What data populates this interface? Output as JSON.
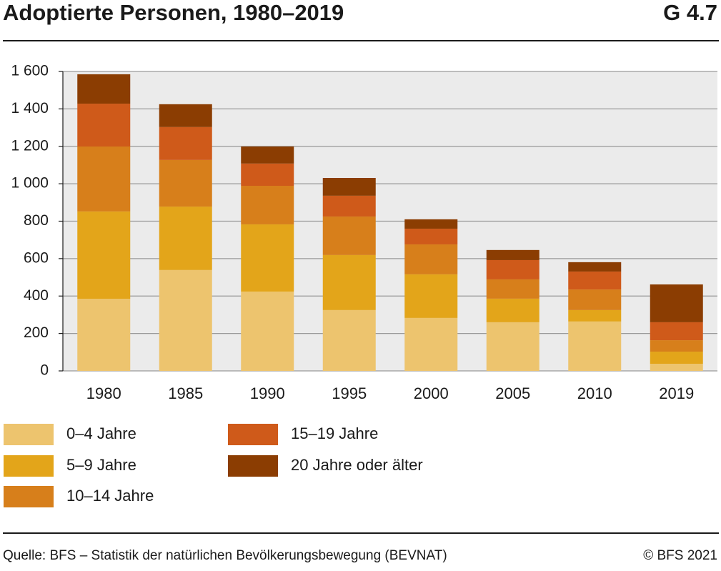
{
  "chart_data": {
    "type": "stacked_bar",
    "title": "Adoptierte Personen, 1980–2019",
    "figure_number": "G 4.7",
    "source": "Quelle: BFS – Statistik der natürlichen Bevölkerungsbewegung (BEVNAT)",
    "copyright": "© BFS 2021",
    "categories": [
      "1980",
      "1985",
      "1990",
      "1995",
      "2000",
      "2005",
      "2010",
      "2019"
    ],
    "series": [
      {
        "name": "0–4 Jahre",
        "color": "#edc46e",
        "values": [
          385,
          539,
          424,
          325,
          283,
          260,
          264,
          38
        ]
      },
      {
        "name": "5–9 Jahre",
        "color": "#e3a51a",
        "values": [
          467,
          339,
          359,
          294,
          233,
          126,
          61,
          65
        ]
      },
      {
        "name": "10–14 Jahre",
        "color": "#d77f1b",
        "values": [
          347,
          249,
          206,
          206,
          160,
          103,
          110,
          61
        ]
      },
      {
        "name": "15–19 Jahre",
        "color": "#cf5a1a",
        "values": [
          229,
          176,
          119,
          111,
          84,
          103,
          96,
          96
        ]
      },
      {
        "name": "20 Jahre oder älter",
        "color": "#8b3d02",
        "values": [
          157,
          122,
          91,
          95,
          50,
          54,
          50,
          202
        ]
      }
    ],
    "ylim": [
      0,
      1600
    ],
    "yticks": [
      0,
      200,
      400,
      600,
      800,
      {
        "value": 1000,
        "label": "1 000"
      },
      {
        "value": 1200,
        "label": "1 200"
      },
      {
        "value": 1400,
        "label": "1 400"
      },
      {
        "value": 1600,
        "label": "1 600"
      }
    ],
    "grid": true
  }
}
